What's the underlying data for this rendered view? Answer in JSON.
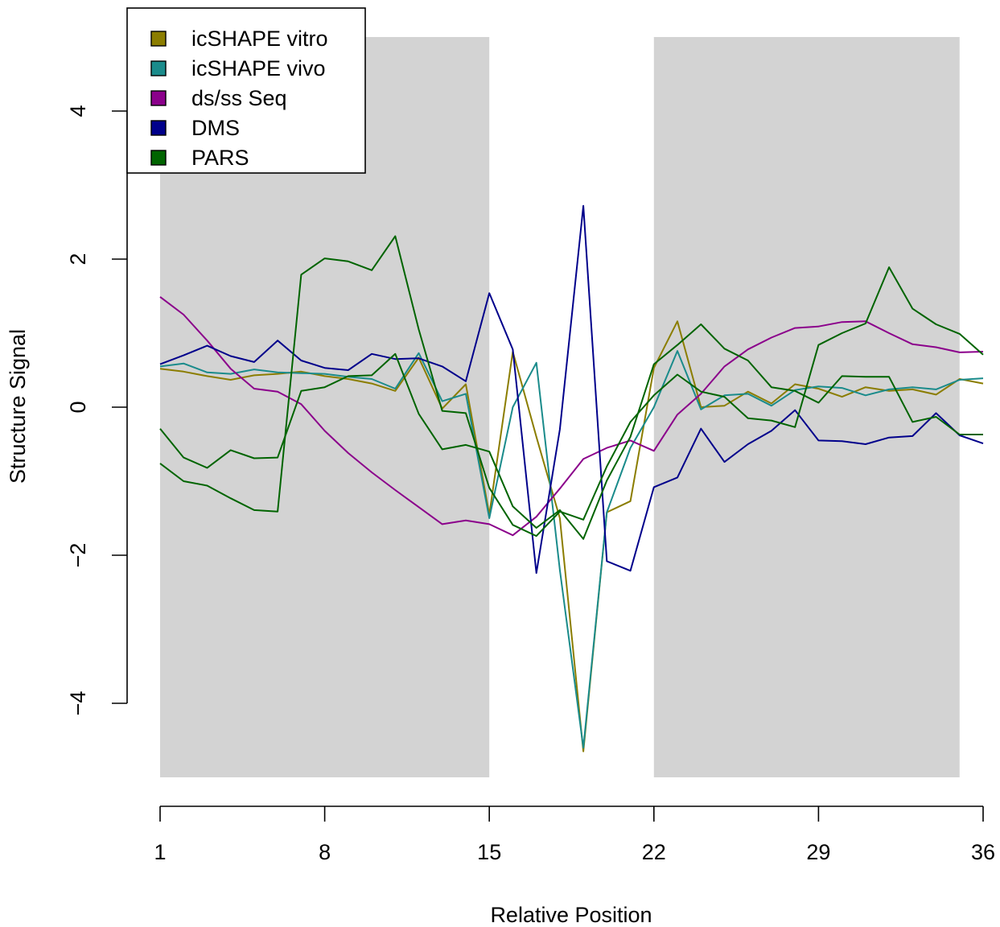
{
  "chart_data": {
    "type": "line",
    "xlabel": "Relative Position",
    "ylabel": "Structure Signal",
    "xlim": [
      1,
      36
    ],
    "ylim": [
      -5,
      5
    ],
    "x_ticks": [
      1,
      8,
      15,
      22,
      29,
      36
    ],
    "y_ticks": [
      -4,
      -2,
      0,
      2,
      4
    ],
    "y_tick_labels": [
      "−4",
      "−2",
      "0",
      "2",
      "4"
    ],
    "grid": false,
    "legend_position": "top-left",
    "shaded_regions": [
      {
        "x_start": 1,
        "x_end": 15,
        "y_start": -5,
        "y_end": 5,
        "color": "#d3d3d3"
      },
      {
        "x_start": 22,
        "x_end": 35,
        "y_start": -5,
        "y_end": 5,
        "color": "#d3d3d3"
      }
    ],
    "x": [
      1,
      2,
      3,
      4,
      5,
      6,
      7,
      8,
      9,
      10,
      11,
      12,
      13,
      14,
      15,
      16,
      17,
      18,
      19,
      20,
      21,
      22,
      23,
      24,
      25,
      26,
      27,
      28,
      29,
      30,
      31,
      32,
      33,
      34,
      35,
      36
    ],
    "series": [
      {
        "name": "icSHAPE vitro",
        "color": "#8b7d00",
        "values": [
          0.52,
          0.48,
          0.42,
          0.37,
          0.43,
          0.45,
          0.48,
          0.42,
          0.38,
          0.32,
          0.22,
          0.67,
          -0.02,
          0.31,
          -1.45,
          0.75,
          -0.4,
          -1.5,
          -4.65,
          -1.42,
          -1.27,
          0.53,
          1.16,
          0.0,
          0.02,
          0.21,
          0.05,
          0.31,
          0.25,
          0.14,
          0.27,
          0.22,
          0.24,
          0.17,
          0.38,
          0.32
        ]
      },
      {
        "name": "icSHAPE vivo",
        "color": "#1a8b8b",
        "values": [
          0.55,
          0.59,
          0.47,
          0.45,
          0.51,
          0.47,
          0.46,
          0.45,
          0.41,
          0.38,
          0.25,
          0.73,
          0.08,
          0.18,
          -1.5,
          0.0,
          0.6,
          -2.2,
          -4.6,
          -1.42,
          -0.55,
          0.0,
          0.76,
          -0.03,
          0.16,
          0.18,
          0.02,
          0.23,
          0.28,
          0.26,
          0.16,
          0.24,
          0.27,
          0.24,
          0.37,
          0.39
        ]
      },
      {
        "name": "ds/ss Seq",
        "color": "#8b008b",
        "values": [
          1.49,
          1.25,
          0.9,
          0.52,
          0.25,
          0.21,
          0.04,
          -0.32,
          -0.62,
          -0.88,
          -1.12,
          -1.35,
          -1.58,
          -1.53,
          -1.58,
          -1.73,
          -1.48,
          -1.1,
          -0.7,
          -0.55,
          -0.45,
          -0.59,
          -0.1,
          0.18,
          0.55,
          0.78,
          0.94,
          1.07,
          1.09,
          1.15,
          1.16,
          1.0,
          0.85,
          0.81,
          0.74,
          0.75
        ]
      },
      {
        "name": "DMS",
        "color": "#00008b",
        "values": [
          0.58,
          0.7,
          0.83,
          0.69,
          0.61,
          0.9,
          0.63,
          0.53,
          0.5,
          0.72,
          0.65,
          0.66,
          0.55,
          0.35,
          1.54,
          0.78,
          -2.24,
          -0.3,
          2.72,
          -2.08,
          -2.21,
          -1.08,
          -0.95,
          -0.29,
          -0.74,
          -0.5,
          -0.32,
          -0.04,
          -0.45,
          -0.46,
          -0.5,
          -0.41,
          -0.39,
          -0.08,
          -0.38,
          -0.49
        ]
      },
      {
        "name": "PARS",
        "color": "#006400",
        "values": [
          -0.76,
          -1.0,
          -1.06,
          -1.23,
          -1.39,
          -1.41,
          1.79,
          2.01,
          1.97,
          1.85,
          2.31,
          1.05,
          -0.05,
          -0.08,
          -1.09,
          -1.59,
          -1.74,
          -1.41,
          -1.52,
          -0.8,
          -0.2,
          0.16,
          0.44,
          0.21,
          0.14,
          -0.15,
          -0.18,
          -0.27,
          0.84,
          1.0,
          1.13,
          1.89,
          1.33,
          1.12,
          0.99,
          0.71
        ]
      },
      {
        "name": "",
        "color": "#006400",
        "values": [
          -0.29,
          -0.68,
          -0.82,
          -0.58,
          -0.69,
          -0.68,
          0.22,
          0.27,
          0.42,
          0.43,
          0.72,
          -0.09,
          -0.57,
          -0.51,
          -0.6,
          -1.34,
          -1.63,
          -1.39,
          -1.78,
          -0.99,
          -0.4,
          0.58,
          0.84,
          1.12,
          0.79,
          0.63,
          0.27,
          0.22,
          0.06,
          0.42,
          0.41,
          0.41,
          -0.2,
          -0.13,
          -0.37,
          -0.37
        ]
      }
    ]
  }
}
